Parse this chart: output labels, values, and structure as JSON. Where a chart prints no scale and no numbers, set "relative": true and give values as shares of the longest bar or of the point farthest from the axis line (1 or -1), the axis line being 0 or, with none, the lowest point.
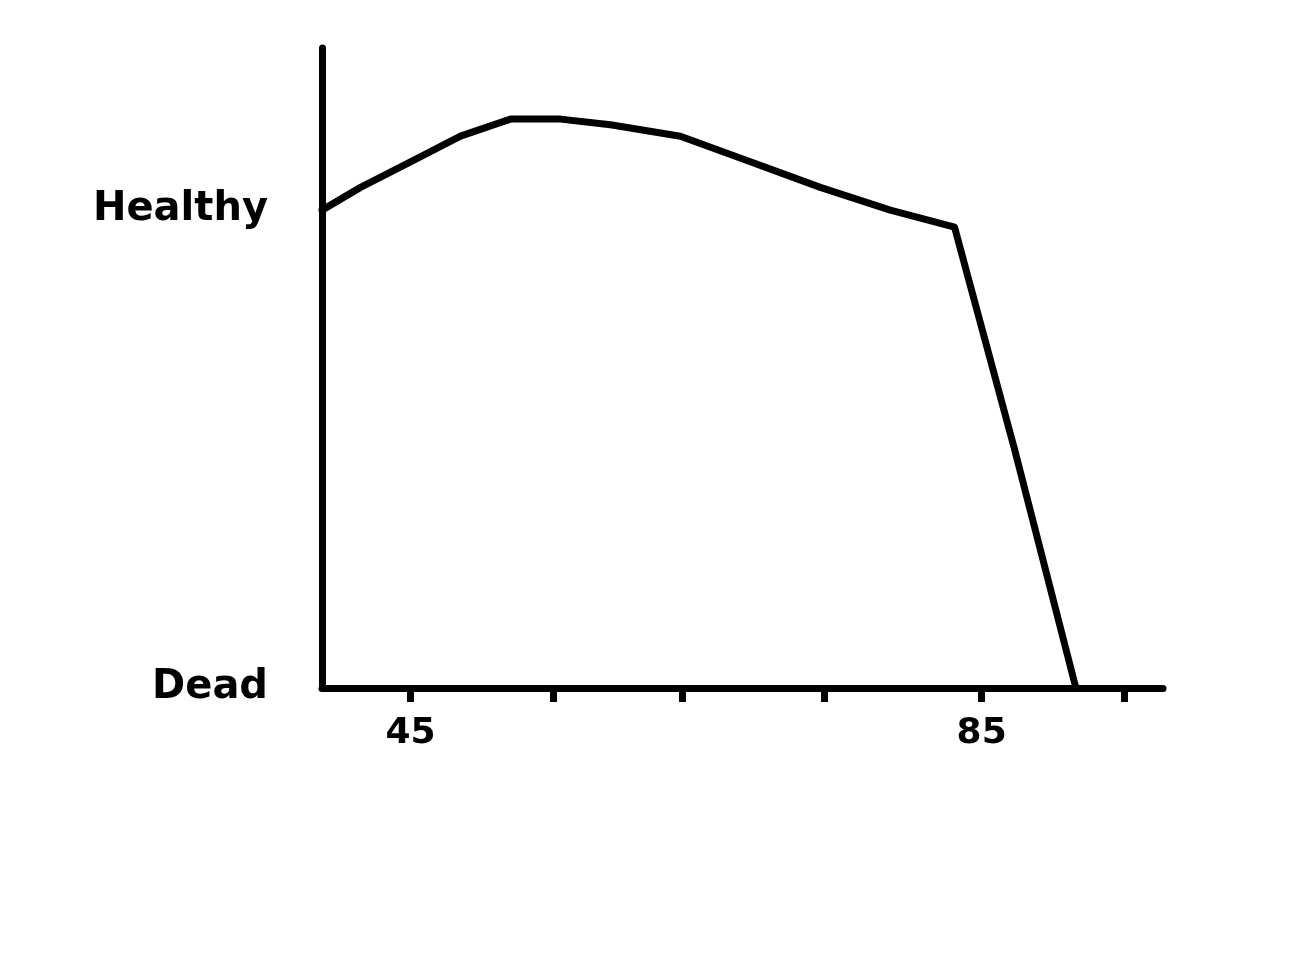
{
  "chart_data": {
    "type": "line",
    "relative": true,
    "x": [
      38.8,
      41.5,
      45,
      48.5,
      52,
      55.5,
      59,
      63.9,
      68.8,
      73.7,
      78.6,
      83.1,
      87.3,
      91.6
    ],
    "series": [
      {
        "color": "#000000",
        "values": [
          0.84,
          0.88,
          0.925,
          0.97,
          1,
          1,
          0.99,
          0.97,
          0.925,
          0.88,
          0.84,
          0.81,
          0.42,
          0
        ]
      }
    ],
    "xlim": [
      38.8,
      97.7
    ],
    "xticks": [
      45,
      {
        "value": 55,
        "label": null
      },
      {
        "value": 64,
        "label": null
      },
      {
        "value": 74,
        "label": null
      },
      85,
      {
        "value": 95,
        "label": null
      }
    ],
    "annotations": [
      "Healthy",
      "Dead"
    ],
    "grid": false,
    "marker": "none",
    "line_style": "solid"
  }
}
